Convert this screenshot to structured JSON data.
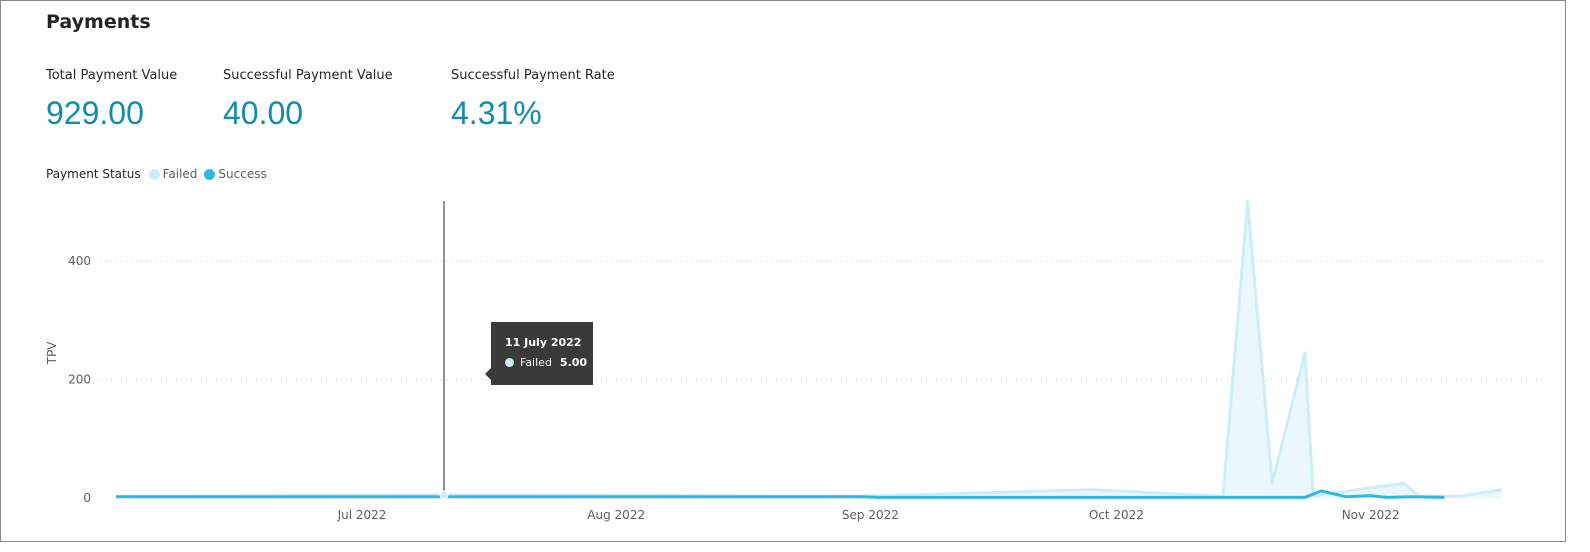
{
  "header": {
    "title": "Payments"
  },
  "kpis": [
    {
      "label": "Total Payment Value",
      "value": "929.00"
    },
    {
      "label": "Successful Payment Value",
      "value": "40.00"
    },
    {
      "label": "Successful Payment Rate",
      "value": "4.31%"
    }
  ],
  "legend": {
    "title": "Payment Status",
    "items": [
      {
        "name": "Failed",
        "color": "#cdeef9"
      },
      {
        "name": "Success",
        "color": "#2fb8e6"
      }
    ]
  },
  "tooltip": {
    "date": "11 July 2022",
    "series": "Failed",
    "value": "5.00"
  },
  "chart_data": {
    "type": "area",
    "ylabel": "TPV",
    "ylim": [
      0,
      480
    ],
    "yticks": [
      0,
      200,
      400
    ],
    "xticks": [
      {
        "label": "Jul 2022",
        "date": "2022-07-01"
      },
      {
        "label": "Aug 2022",
        "date": "2022-08-01"
      },
      {
        "label": "Sep 2022",
        "date": "2022-09-01"
      },
      {
        "label": "Oct 2022",
        "date": "2022-10-01"
      },
      {
        "label": "Nov 2022",
        "date": "2022-11-01"
      }
    ],
    "grid": true,
    "series": [
      {
        "name": "Failed",
        "color": "#cdeef9",
        "points": [
          [
            "2022-06-01",
            3
          ],
          [
            "2022-07-11",
            5
          ],
          [
            "2022-08-31",
            3
          ],
          [
            "2022-09-28",
            14
          ],
          [
            "2022-10-14",
            3
          ],
          [
            "2022-10-17",
            500
          ],
          [
            "2022-10-20",
            25
          ],
          [
            "2022-10-24",
            245
          ],
          [
            "2022-10-25",
            3
          ],
          [
            "2022-11-05",
            25
          ],
          [
            "2022-11-07",
            3
          ],
          [
            "2022-11-12",
            3
          ],
          [
            "2022-11-17",
            14
          ]
        ]
      },
      {
        "name": "Success",
        "color": "#2fb8e6",
        "points": [
          [
            "2022-06-01",
            2
          ],
          [
            "2022-08-31",
            2
          ],
          [
            "2022-09-02",
            1
          ],
          [
            "2022-10-24",
            1
          ],
          [
            "2022-10-26",
            12
          ],
          [
            "2022-10-29",
            2
          ],
          [
            "2022-11-01",
            4
          ],
          [
            "2022-11-03",
            1
          ],
          [
            "2022-11-06",
            2
          ],
          [
            "2022-11-10",
            1
          ]
        ]
      }
    ]
  }
}
